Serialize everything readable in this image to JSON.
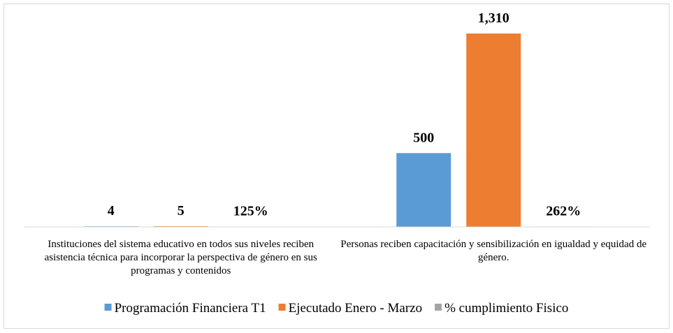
{
  "chart_data": {
    "type": "bar",
    "categories": [
      "Instituciones del sistema educativo en todos sus niveles reciben asistencia técnica para incorporar la perspectiva de género en sus programas y contenidos",
      "Personas reciben capacitación y sensibilización en igualdad y equidad de género."
    ],
    "series": [
      {
        "name": "Programación Financiera T1",
        "color": "#5b9bd5",
        "values": [
          4,
          500
        ],
        "value_labels": [
          "4",
          "500"
        ]
      },
      {
        "name": "Ejecutado Enero - Marzo",
        "color": "#ed7d31",
        "values": [
          5,
          1310
        ],
        "value_labels": [
          "5",
          "1,310"
        ]
      },
      {
        "name": "% cumplimiento Fisico",
        "color": "#a5a5a5",
        "values": [
          1.25,
          2.62
        ],
        "value_labels": [
          "125%",
          "262%"
        ]
      }
    ],
    "ylim": [
      0,
      1400
    ],
    "legend": "bottom"
  }
}
